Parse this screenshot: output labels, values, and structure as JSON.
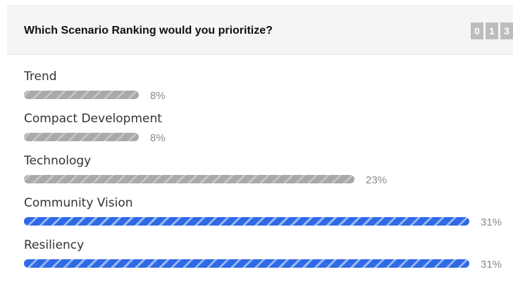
{
  "poll": {
    "question": "Which Scenario Ranking would you prioritize?",
    "vote_counter": [
      "0",
      "1",
      "3"
    ],
    "colors": {
      "leading": "#2e6ae6",
      "other": "#a9a9a9"
    },
    "options": [
      {
        "label": "Trend",
        "percent": 8,
        "percent_text": "8%",
        "leading": false
      },
      {
        "label": "Compact Development",
        "percent": 8,
        "percent_text": "8%",
        "leading": false
      },
      {
        "label": "Technology",
        "percent": 23,
        "percent_text": "23%",
        "leading": false
      },
      {
        "label": "Community Vision",
        "percent": 31,
        "percent_text": "31%",
        "leading": true
      },
      {
        "label": "Resiliency",
        "percent": 31,
        "percent_text": "31%",
        "leading": true
      }
    ]
  }
}
